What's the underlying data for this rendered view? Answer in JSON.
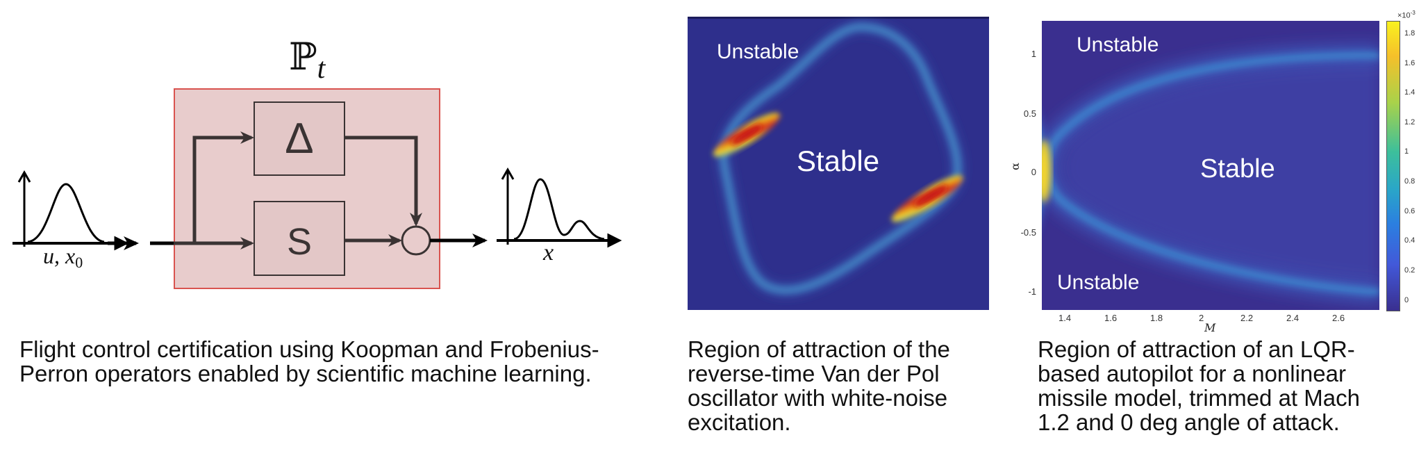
{
  "panel1": {
    "operator_symbol": "ℙ",
    "operator_subscript": "t",
    "delta_label": "Δ",
    "s_label": "S",
    "input_label": "u, x",
    "input_label_sub": "0",
    "output_label": "x",
    "caption": "Flight control certification using Koopman and Frobenius-\nPerron operators enabled by scientific machine learning."
  },
  "panel2": {
    "label_unstable": "Unstable",
    "label_stable": "Stable",
    "caption": "Region of attraction of the\nreverse-time Van der Pol\noscillator with white-noise\nexcitation."
  },
  "panel3": {
    "label_unstable_top": "Unstable",
    "label_unstable_bottom": "Unstable",
    "label_stable": "Stable",
    "xlabel": "M",
    "ylabel": "α",
    "xticks": [
      "1.4",
      "1.6",
      "1.8",
      "2",
      "2.2",
      "2.4",
      "2.6"
    ],
    "yticks": [
      "1",
      "0.5",
      "0",
      "-0.5",
      "-1"
    ],
    "colorbar_ticks": [
      "1.8",
      "1.6",
      "1.4",
      "1.2",
      "1",
      "0.8",
      "0.6",
      "0.4",
      "0.2",
      "0"
    ],
    "colorbar_exponent": "×10",
    "colorbar_exponent_power": "-3",
    "caption": "Region of attraction of an LQR-\nbased autopilot for a nonlinear\nmissile  model, trimmed at Mach\n1.2 and 0 deg angle of attack."
  },
  "colors": {
    "block_fill": "#e8cccc",
    "block_border": "#d9534f",
    "heatmap_bg": "#2e2f8c",
    "colorbar_top": "#f9f21f",
    "colorbar_bottom": "#3a2f8f"
  }
}
